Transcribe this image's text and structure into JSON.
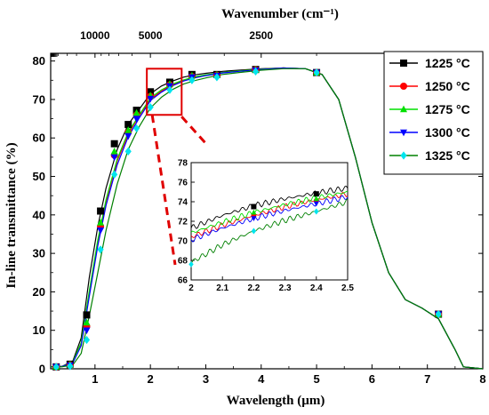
{
  "chart_data": [
    {
      "type": "line",
      "xlabel": "Wavelength (µm)",
      "ylabel": "In-line transmittance (%)",
      "top_axis_label": "Wavenumber (cm⁻¹)",
      "xlim": [
        0.2,
        8
      ],
      "ylim": [
        0,
        82
      ],
      "x_ticks": [
        1,
        2,
        3,
        4,
        5,
        6,
        7,
        8
      ],
      "y_ticks": [
        0,
        10,
        20,
        30,
        40,
        50,
        60,
        70,
        80
      ],
      "top_ticks": [
        10000,
        5000,
        2500
      ],
      "grid": false,
      "legend_position": "top-right",
      "series": [
        {
          "name": "1225 °C",
          "color": "#000000",
          "marker": "square",
          "x": [
            0.2,
            0.4,
            0.6,
            0.75,
            0.9,
            1.05,
            1.2,
            1.4,
            1.6,
            1.8,
            2.0,
            2.2,
            2.4,
            2.6,
            2.8,
            3.0,
            3.3,
            3.6,
            4.0,
            4.4,
            4.8,
            5.1,
            5.4,
            5.7,
            6.0,
            6.3,
            6.6,
            6.9,
            7.2,
            7.5,
            7.65,
            8.0
          ],
          "y": [
            0.5,
            0.6,
            2.0,
            8.0,
            24.0,
            37.0,
            47.0,
            57.0,
            63.5,
            67.5,
            71.5,
            73.5,
            74.8,
            75.8,
            76.4,
            76.8,
            77.3,
            77.6,
            78.0,
            78.2,
            78.0,
            76.5,
            70.0,
            55.0,
            38.0,
            25.0,
            18.0,
            15.8,
            13.0,
            5.0,
            0.5,
            0.0
          ],
          "markers_x": [
            0.3,
            0.55,
            0.85,
            1.1,
            1.35,
            1.6,
            1.75,
            2.0,
            2.35,
            2.75,
            3.2,
            3.9,
            5.0,
            7.2
          ],
          "markers_y": [
            0.5,
            1.2,
            14.0,
            41.0,
            58.5,
            63.5,
            67.2,
            72.0,
            74.5,
            76.5,
            76.5,
            77.8,
            77.0,
            14.2
          ]
        },
        {
          "name": "1250 °C",
          "color": "#ff0000",
          "marker": "circle",
          "x": [
            0.2,
            0.4,
            0.6,
            0.75,
            0.9,
            1.05,
            1.2,
            1.4,
            1.6,
            1.8,
            2.0,
            2.2,
            2.4,
            2.6,
            2.8,
            3.0,
            3.3,
            3.6,
            4.0,
            4.4,
            4.8,
            5.1,
            5.4,
            5.7,
            6.0,
            6.3,
            6.6,
            6.9,
            7.2,
            7.5,
            7.65,
            8.0
          ],
          "y": [
            0.5,
            0.6,
            1.6,
            6.5,
            20.0,
            33.0,
            43.5,
            54.0,
            61.0,
            65.8,
            70.0,
            72.2,
            73.8,
            75.0,
            75.8,
            76.3,
            77.0,
            77.4,
            77.9,
            78.2,
            78.0,
            76.5,
            70.0,
            55.0,
            38.0,
            25.0,
            18.0,
            15.8,
            13.0,
            5.0,
            0.5,
            0.0
          ],
          "markers_x": [
            0.3,
            0.55,
            0.85,
            1.1,
            1.35,
            1.6,
            1.75,
            2.0,
            2.35,
            2.75,
            3.2,
            3.9,
            5.0,
            7.2
          ],
          "markers_y": [
            0.5,
            1.0,
            11.0,
            37.0,
            55.5,
            61.5,
            66.0,
            70.8,
            73.8,
            76.0,
            76.3,
            77.7,
            77.0,
            14.2
          ]
        },
        {
          "name": "1275 °C",
          "color": "#00e000",
          "marker": "triangle-up",
          "x": [
            0.2,
            0.4,
            0.6,
            0.75,
            0.9,
            1.05,
            1.2,
            1.4,
            1.6,
            1.8,
            2.0,
            2.2,
            2.4,
            2.6,
            2.8,
            3.0,
            3.3,
            3.6,
            4.0,
            4.4,
            4.8,
            5.1,
            5.4,
            5.7,
            6.0,
            6.3,
            6.6,
            6.9,
            7.2,
            7.5,
            7.65,
            8.0
          ],
          "y": [
            0.5,
            0.6,
            1.7,
            6.8,
            20.5,
            33.5,
            44.0,
            54.5,
            61.5,
            66.0,
            70.4,
            72.5,
            74.0,
            75.1,
            75.9,
            76.4,
            77.0,
            77.4,
            77.9,
            78.2,
            78.0,
            76.5,
            70.0,
            55.0,
            38.0,
            25.0,
            18.0,
            15.8,
            13.0,
            5.0,
            0.5,
            0.0
          ],
          "markers_x": [
            0.3,
            0.55,
            0.85,
            1.1,
            1.35,
            1.6,
            1.75,
            2.0,
            2.35,
            2.75,
            3.2,
            3.9,
            5.0,
            7.2
          ],
          "markers_y": [
            0.5,
            1.1,
            12.0,
            38.0,
            56.5,
            62.0,
            66.5,
            71.0,
            74.0,
            76.2,
            76.4,
            77.7,
            77.0,
            14.2
          ]
        },
        {
          "name": "1300 °C",
          "color": "#0000ff",
          "marker": "triangle-down",
          "x": [
            0.2,
            0.4,
            0.6,
            0.75,
            0.9,
            1.05,
            1.2,
            1.4,
            1.6,
            1.8,
            2.0,
            2.2,
            2.4,
            2.6,
            2.8,
            3.0,
            3.3,
            3.6,
            4.0,
            4.4,
            4.8,
            5.1,
            5.4,
            5.7,
            6.0,
            6.3,
            6.6,
            6.9,
            7.2,
            7.5,
            7.65,
            8.0
          ],
          "y": [
            0.5,
            0.6,
            1.5,
            6.0,
            19.0,
            32.0,
            42.5,
            53.0,
            60.3,
            65.2,
            69.7,
            71.9,
            73.6,
            74.8,
            75.6,
            76.2,
            76.9,
            77.3,
            77.8,
            78.2,
            78.0,
            76.5,
            70.0,
            55.0,
            38.0,
            25.0,
            18.0,
            15.8,
            13.0,
            5.0,
            0.5,
            0.0
          ],
          "markers_x": [
            0.3,
            0.55,
            0.85,
            1.1,
            1.35,
            1.6,
            1.75,
            2.0,
            2.35,
            2.75,
            3.2,
            3.9,
            5.0,
            7.2
          ],
          "markers_y": [
            0.5,
            0.9,
            10.0,
            36.0,
            55.0,
            60.5,
            65.0,
            70.2,
            73.5,
            75.8,
            76.2,
            77.6,
            77.0,
            14.2
          ]
        },
        {
          "name": "1325 °C",
          "color": "#00e5ee",
          "marker": "diamond",
          "line_color": "#008000",
          "x": [
            0.2,
            0.4,
            0.6,
            0.75,
            0.9,
            1.05,
            1.2,
            1.4,
            1.6,
            1.8,
            2.0,
            2.2,
            2.4,
            2.6,
            2.8,
            3.0,
            3.3,
            3.6,
            4.0,
            4.4,
            4.8,
            5.1,
            5.4,
            5.7,
            6.0,
            6.3,
            6.6,
            6.9,
            7.2,
            7.5,
            7.65,
            8.0
          ],
          "y": [
            0.5,
            0.5,
            1.0,
            4.0,
            14.0,
            25.0,
            36.0,
            48.0,
            57.0,
            63.0,
            67.8,
            70.6,
            72.6,
            74.0,
            74.9,
            75.6,
            76.5,
            77.0,
            77.6,
            78.0,
            78.0,
            76.5,
            70.0,
            55.0,
            38.0,
            25.0,
            18.0,
            15.8,
            13.0,
            5.0,
            0.5,
            0.0
          ],
          "markers_x": [
            0.3,
            0.55,
            0.85,
            1.1,
            1.35,
            1.6,
            1.75,
            2.0,
            2.35,
            2.75,
            3.2,
            3.9,
            5.0,
            7.2
          ],
          "markers_y": [
            0.5,
            0.7,
            7.5,
            31.0,
            50.5,
            56.5,
            62.5,
            68.0,
            72.5,
            75.0,
            75.8,
            77.3,
            77.0,
            14.2
          ]
        }
      ],
      "zoom_region": {
        "x": [
          2.0,
          2.5
        ],
        "y": [
          66,
          78
        ]
      }
    },
    {
      "type": "line",
      "xlim": [
        2.0,
        2.5
      ],
      "ylim": [
        66,
        78
      ],
      "x_ticks": [
        2.0,
        2.1,
        2.2,
        2.3,
        2.4,
        2.5
      ],
      "y_ticks": [
        66,
        68,
        70,
        72,
        74,
        76,
        78
      ],
      "series": [
        {
          "name": "1225 °C",
          "color": "#000000",
          "marker": "square",
          "x": [
            2.0,
            2.1,
            2.2,
            2.3,
            2.4,
            2.5
          ],
          "y": [
            71.3,
            72.6,
            73.6,
            74.3,
            74.9,
            75.4
          ],
          "markers_x": [
            2.2,
            2.4
          ],
          "markers_y": [
            73.5,
            74.8
          ]
        },
        {
          "name": "1250 °C",
          "color": "#ff0000",
          "marker": "circle",
          "x": [
            2.0,
            2.1,
            2.2,
            2.3,
            2.4,
            2.5
          ],
          "y": [
            70.4,
            71.6,
            72.6,
            73.5,
            74.2,
            74.8
          ],
          "markers_x": [
            2.2,
            2.4
          ],
          "markers_y": [
            72.6,
            74.1
          ]
        },
        {
          "name": "1275 °C",
          "color": "#00e000",
          "marker": "triangle-up",
          "x": [
            2.0,
            2.1,
            2.2,
            2.3,
            2.4,
            2.5
          ],
          "y": [
            70.8,
            71.9,
            72.9,
            73.7,
            74.4,
            75.0
          ],
          "markers_x": [
            2.2,
            2.4
          ],
          "markers_y": [
            72.9,
            74.3
          ]
        },
        {
          "name": "1300 °C",
          "color": "#0000ff",
          "marker": "triangle-down",
          "x": [
            2.0,
            2.1,
            2.2,
            2.3,
            2.4,
            2.5
          ],
          "y": [
            70.1,
            71.3,
            72.3,
            73.1,
            73.8,
            74.5
          ],
          "markers_x": [
            2.2,
            2.4
          ],
          "markers_y": [
            72.3,
            73.8
          ]
        },
        {
          "name": "1325 °C",
          "color": "#00e5ee",
          "marker": "diamond",
          "line_color": "#008000",
          "x": [
            2.0,
            2.1,
            2.2,
            2.3,
            2.4,
            2.5
          ],
          "y": [
            67.8,
            69.6,
            71.0,
            72.1,
            73.0,
            74.0
          ],
          "markers_x": [
            2.0,
            2.2,
            2.4
          ],
          "markers_y": [
            67.6,
            71.0,
            73.0
          ]
        }
      ]
    }
  ]
}
